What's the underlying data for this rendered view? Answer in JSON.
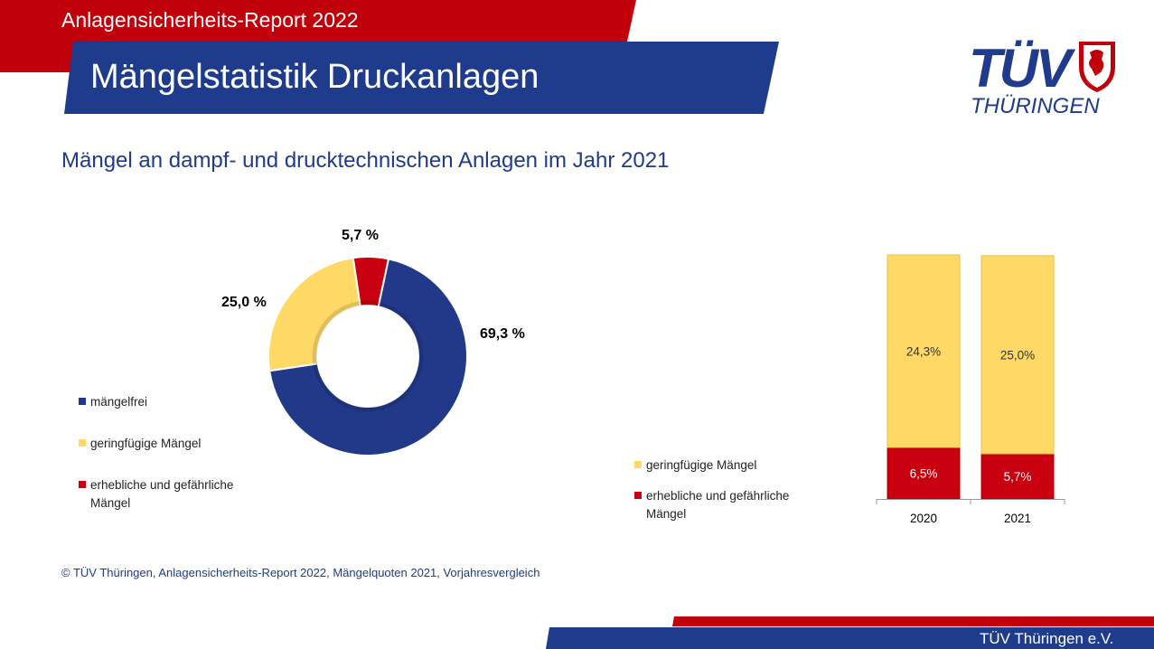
{
  "header": {
    "report_title": "Anlagensicherheits-Report 2022",
    "slide_title": "Mängelstatistik Druckanlagen",
    "logo_main": "TÜV",
    "logo_sub": "THÜRINGEN"
  },
  "subtitle": "Mängel an dampf- und drucktechnischen Anlagen im Jahr 2021",
  "colors": {
    "blue": "#1f3b8c",
    "red": "#c0000b",
    "yellow": "#ffd966"
  },
  "chart_data": [
    {
      "type": "pie",
      "variant": "donut",
      "title": "",
      "categories": [
        "mängelfrei",
        "geringfügige Mängel",
        "erhebliche und gefährliche Mängel"
      ],
      "values": [
        69.3,
        25.0,
        5.7
      ],
      "data_labels": [
        "69,3 %",
        "25,0 %",
        "5,7 %"
      ],
      "colors": [
        "#22398a",
        "#ffd966",
        "#c9000f"
      ],
      "legend": {
        "placement": "left",
        "entries": [
          "mängelfrei",
          "geringfügige Mängel",
          "erhebliche und gefährliche Mängel"
        ]
      }
    },
    {
      "type": "bar",
      "stacked": true,
      "title": "",
      "categories": [
        "2020",
        "2021"
      ],
      "series": [
        {
          "name": "erhebliche und gefährliche Mängel",
          "values": [
            6.5,
            5.7
          ],
          "labels": [
            "6,5%",
            "5,7%"
          ],
          "color": "#c9000f"
        },
        {
          "name": "geringfügige Mängel",
          "values": [
            24.3,
            25.0
          ],
          "labels": [
            "24,3%",
            "25,0%"
          ],
          "color": "#ffd966"
        }
      ],
      "legend": {
        "placement": "left",
        "entries": [
          "geringfügige Mängel",
          "erhebliche und gefährliche Mängel"
        ]
      }
    }
  ],
  "footnote": "© TÜV Thüringen, Anlagensicherheits-Report 2022, Mängelquoten 2021, Vorjahresvergleich",
  "footer": {
    "org": "TÜV Thüringen e.V."
  }
}
